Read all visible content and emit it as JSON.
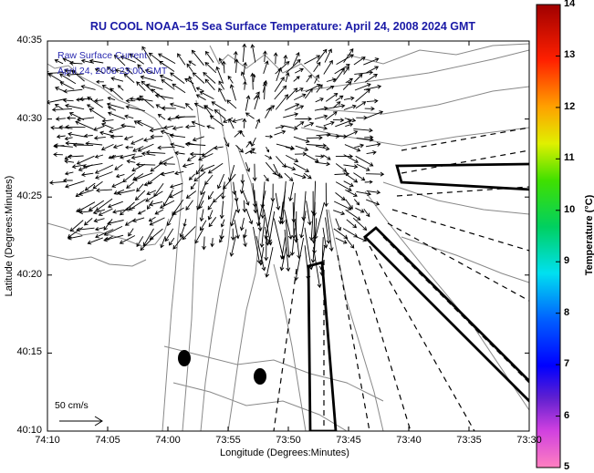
{
  "title": "RU COOL  NOAA–15  Sea Surface Temperature:  April 24, 2008 2024 GMT",
  "legend": {
    "line1": "Raw Surface Current",
    "line2": "April 24, 2008 23:00 GMT"
  },
  "axes": {
    "xlabel": "Longitude (Degrees:Minutes)",
    "ylabel": "Latitude (Degrees:Minutes)",
    "xticks": [
      "74:10",
      "74:05",
      "74:00",
      "73:55",
      "73:50",
      "73:45",
      "73:40",
      "73:35",
      "73:30"
    ],
    "yticks": [
      "40:35",
      "40:30",
      "40:25",
      "40:20",
      "40:15",
      "40:10"
    ]
  },
  "colorbar": {
    "label": "Temperature (°C)",
    "ticks": [
      "14",
      "13",
      "12",
      "11",
      "10",
      "9",
      "8",
      "7",
      "6",
      "5"
    ],
    "min": 5,
    "max": 14
  },
  "scale": {
    "label": "50 cm/s"
  },
  "colors": {
    "title": "#1a1aa6",
    "legend": "#2a2ab0",
    "coastline": "#888888",
    "vectors": "#000000"
  }
}
